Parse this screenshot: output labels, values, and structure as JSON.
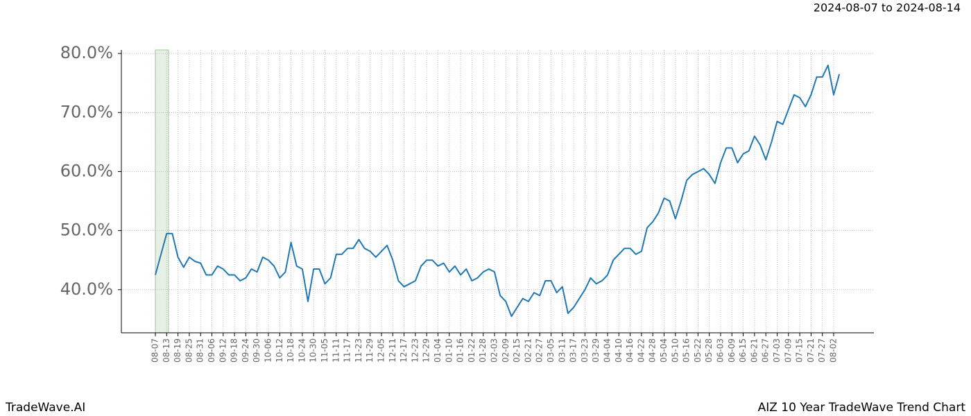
{
  "chart_data": {
    "type": "line",
    "subtitle": "2024-08-07 to 2024-08-14",
    "footer_left": "TradeWave.AI",
    "footer_right": "AIZ 10 Year TradeWave Trend Chart",
    "categories": [
      "08-07",
      null,
      "08-13",
      null,
      "08-19",
      null,
      "08-25",
      null,
      "08-31",
      null,
      "09-06",
      null,
      "09-12",
      null,
      "09-18",
      null,
      "09-24",
      null,
      "09-30",
      null,
      "10-06",
      null,
      "10-12",
      null,
      "10-18",
      null,
      "10-24",
      null,
      "10-30",
      null,
      "11-05",
      null,
      "11-11",
      null,
      "11-17",
      null,
      "11-23",
      null,
      "11-29",
      null,
      "12-05",
      null,
      "12-11",
      null,
      "12-17",
      null,
      "12-23",
      null,
      "12-29",
      null,
      "01-04",
      null,
      "01-10",
      null,
      "01-16",
      null,
      "01-22",
      null,
      "01-28",
      null,
      "02-03",
      null,
      "02-09",
      null,
      "02-15",
      null,
      "02-21",
      null,
      "02-27",
      null,
      "03-05",
      null,
      "03-11",
      null,
      "03-17",
      null,
      "03-23",
      null,
      "03-29",
      null,
      "04-04",
      null,
      "04-10",
      null,
      "04-16",
      null,
      "04-22",
      null,
      "04-28",
      null,
      "05-04",
      null,
      "05-10",
      null,
      "05-16",
      null,
      "05-22",
      null,
      "05-28",
      null,
      "06-03",
      null,
      "06-09",
      null,
      "06-15",
      null,
      "06-21",
      null,
      "06-27",
      null,
      "07-03",
      null,
      "07-09",
      null,
      "07-15",
      null,
      "07-21",
      null,
      "07-27",
      null,
      "08-02",
      null
    ],
    "series": [
      {
        "color": "#1f77b4",
        "values": [
          42.5,
          46,
          49.5,
          49.5,
          45.5,
          43.8,
          45.5,
          44.8,
          44.5,
          42.5,
          42.5,
          44,
          43.5,
          42.5,
          42.5,
          41.5,
          42,
          43.5,
          43,
          45.5,
          45,
          44,
          42,
          43,
          48,
          44,
          43.5,
          38,
          43.5,
          43.5,
          41,
          42,
          46,
          46,
          47,
          47,
          48.5,
          47,
          46.5,
          45.5,
          46.5,
          47.5,
          45,
          41.5,
          40.5,
          41,
          41.5,
          44,
          45,
          45,
          44,
          44.5,
          43,
          44,
          42.5,
          43.5,
          41.5,
          42,
          43,
          43.5,
          43,
          39,
          38,
          35.5,
          37,
          38.5,
          38,
          39.5,
          39,
          41.5,
          41.5,
          39.5,
          40.5,
          36,
          37,
          38.5,
          40,
          42,
          41,
          41.5,
          42.5,
          45,
          46,
          47,
          47,
          46,
          46.5,
          50.5,
          51.5,
          53,
          55.5,
          55,
          52,
          55,
          58.5,
          59.5,
          60,
          60.5,
          59.5,
          58,
          61.5,
          64,
          64,
          61.5,
          63,
          63.5,
          66,
          64.5,
          62,
          65,
          68.5,
          68,
          70.5,
          73,
          72.5,
          71,
          73,
          76,
          76,
          78,
          73,
          76.5
        ]
      }
    ],
    "ylim": [
      32.7,
      80.6
    ],
    "yticks": [
      {
        "value": 40,
        "label": "40.0%"
      },
      {
        "value": 50,
        "label": "50.0%"
      },
      {
        "value": 60,
        "label": "60.0%"
      },
      {
        "value": 70,
        "label": "70.0%"
      },
      {
        "value": 80,
        "label": "80.0%"
      }
    ],
    "grid": true
  }
}
